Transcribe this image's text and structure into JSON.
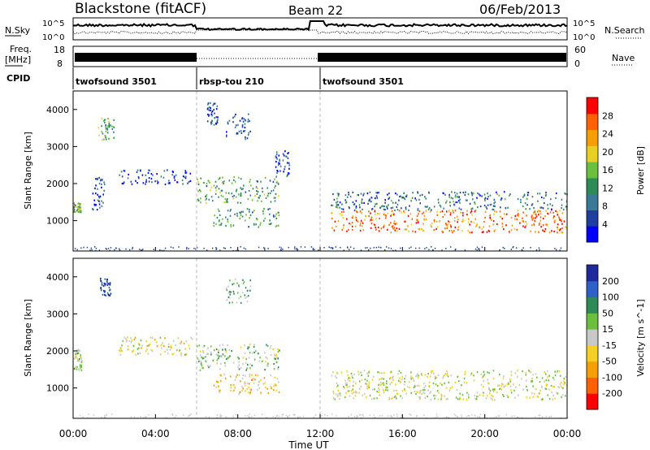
{
  "header": {
    "station": "Blackstone (fitACF)",
    "beam": "Beam 22",
    "date": "06/Feb/2013"
  },
  "params": {
    "nsky_label": "N.Sky",
    "nsearch_label": "N.Search",
    "freq_label": "Freq.",
    "freq_unit": "[MHz]",
    "nave_label": "Nave",
    "cpid_label": "CPID",
    "log_tick_hi": "10^5",
    "log_tick_lo": "10^0",
    "freq_ticks": [
      "18",
      "8"
    ],
    "nave_ticks": [
      "60",
      "0"
    ]
  },
  "cpid_segments": [
    {
      "start_hour": 0,
      "end_hour": 6.0,
      "label": "twofsound 3501"
    },
    {
      "start_hour": 6.0,
      "end_hour": 12.0,
      "label": "rbsp-tou 210"
    },
    {
      "start_hour": 12.0,
      "end_hour": 24.0,
      "label": "twofsound 3501"
    }
  ],
  "chart_data": [
    {
      "type": "heatmap",
      "xlabel": "",
      "ylabel": "Slant Range [km]",
      "xlim_hours": [
        0,
        24
      ],
      "ylim_km": [
        180,
        4500
      ],
      "yticks": [
        "1000",
        "2000",
        "3000",
        "4000"
      ],
      "colorbar": {
        "label": "Power [dB]",
        "ticks": [
          "4",
          "8",
          "12",
          "16",
          "20",
          "24",
          "28"
        ],
        "range": [
          0,
          30
        ],
        "colors": [
          "#0000ff",
          "#1f3fa0",
          "#3a7a98",
          "#2e8b57",
          "#6cbf3c",
          "#e8d020",
          "#f5a000",
          "#ff6000",
          "#ff0000"
        ]
      },
      "echo_regions": [
        {
          "t0": 0.0,
          "t1": 0.4,
          "r0": 1250,
          "r1": 1500,
          "value": 14
        },
        {
          "t0": 0.9,
          "t1": 1.5,
          "r0": 1300,
          "r1": 2200,
          "value": 6
        },
        {
          "t0": 1.2,
          "t1": 2.0,
          "r0": 3200,
          "r1": 3800,
          "value": 12
        },
        {
          "t0": 2.2,
          "t1": 5.8,
          "r0": 2000,
          "r1": 2400,
          "value": 5
        },
        {
          "t0": 6.5,
          "t1": 7.0,
          "r0": 3600,
          "r1": 4200,
          "value": 6
        },
        {
          "t0": 7.4,
          "t1": 8.6,
          "r0": 3200,
          "r1": 3900,
          "value": 6
        },
        {
          "t0": 6.0,
          "t1": 10.0,
          "r0": 1500,
          "r1": 2200,
          "value": 12
        },
        {
          "t0": 6.8,
          "t1": 10.0,
          "r0": 850,
          "r1": 1350,
          "value": 12
        },
        {
          "t0": 9.8,
          "t1": 10.5,
          "r0": 2200,
          "r1": 2900,
          "value": 5
        },
        {
          "t0": 12.5,
          "t1": 24.0,
          "r0": 700,
          "r1": 1300,
          "value": 24
        },
        {
          "t0": 12.5,
          "t1": 24.0,
          "r0": 1300,
          "r1": 1800,
          "value": 8
        }
      ]
    },
    {
      "type": "heatmap",
      "xlabel": "Time UT",
      "ylabel": "Slant Range [km]",
      "xticks": [
        "00:00",
        "04:00",
        "08:00",
        "12:00",
        "16:00",
        "20:00",
        "00:00"
      ],
      "xlim_hours": [
        0,
        24
      ],
      "ylim_km": [
        180,
        4500
      ],
      "yticks": [
        "1000",
        "2000",
        "3000",
        "4000"
      ],
      "colorbar": {
        "label": "Velocity [m s^-1]",
        "ticks": [
          "200",
          "100",
          "50",
          "15",
          "-15",
          "-50",
          "-100",
          "-200"
        ],
        "range": [
          -250,
          250
        ],
        "colors": [
          "#1e2a9c",
          "#2f5fc8",
          "#2e8b57",
          "#6cbf3c",
          "#c8c8c8",
          "#f5d020",
          "#f5a000",
          "#ff6000",
          "#ff0000"
        ]
      },
      "echo_regions": [
        {
          "t0": 0.0,
          "t1": 0.4,
          "r0": 1500,
          "r1": 2100,
          "value": 10
        },
        {
          "t0": 1.3,
          "t1": 1.8,
          "r0": 3500,
          "r1": 4000,
          "value": 200
        },
        {
          "t0": 2.2,
          "t1": 5.8,
          "r0": 1900,
          "r1": 2400,
          "value": -40
        },
        {
          "t0": 7.4,
          "t1": 8.6,
          "r0": 3300,
          "r1": 4000,
          "value": 60
        },
        {
          "t0": 6.0,
          "t1": 10.0,
          "r0": 1500,
          "r1": 2200,
          "value": 40
        },
        {
          "t0": 6.8,
          "t1": 10.0,
          "r0": 850,
          "r1": 1400,
          "value": -60
        },
        {
          "t0": 12.5,
          "t1": 24.0,
          "r0": 700,
          "r1": 1500,
          "value": 0
        }
      ]
    }
  ]
}
